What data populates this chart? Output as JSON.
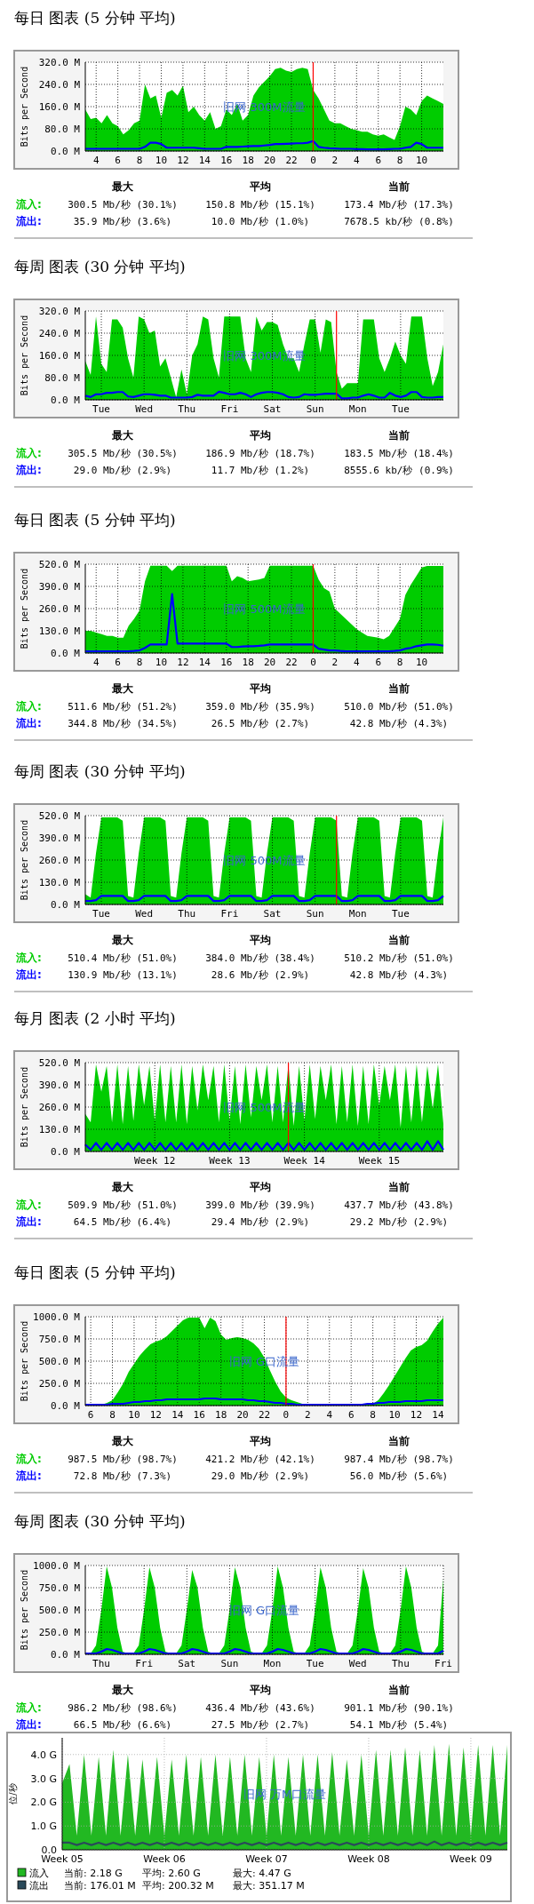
{
  "chart_data": [
    {
      "type": "area",
      "title": "每日 图表 (5 分钟 平均)",
      "ylabel": "Bits per Second",
      "ylim": [
        0,
        320
      ],
      "grid": true,
      "categories": [
        null,
        null,
        "4",
        null,
        null,
        null,
        "6",
        null,
        null,
        null,
        "8",
        null,
        null,
        null,
        "10",
        null,
        null,
        null,
        "12",
        null,
        null,
        null,
        "14",
        null,
        null,
        null,
        "16",
        null,
        null,
        null,
        "18",
        null,
        null,
        null,
        "20",
        null,
        null,
        null,
        "22",
        null,
        null,
        null,
        "0",
        null,
        null,
        null,
        "2",
        null,
        null,
        null,
        "4",
        null,
        null,
        null,
        "6",
        null,
        null,
        null,
        "8",
        null,
        null,
        null,
        "10",
        null,
        null,
        null,
        null
      ],
      "yticks": [
        {
          "value": 0,
          "label": "0.0 M"
        },
        {
          "value": 80,
          "label": "80.0 M"
        },
        {
          "value": 160,
          "label": "160.0 M"
        },
        {
          "value": 240,
          "label": "240.0 M"
        },
        {
          "value": 320,
          "label": "320.0 M"
        }
      ],
      "ref_lines": [
        {
          "axis": "x",
          "value": "0",
          "color": "#ff0000"
        }
      ],
      "series": [
        {
          "name": "流入:",
          "type": "area",
          "color": "#00cc00",
          "values": [
            150,
            115,
            120,
            100,
            130,
            100,
            90,
            60,
            75,
            100,
            110,
            240,
            190,
            200,
            120,
            210,
            220,
            200,
            235,
            140,
            160,
            130,
            110,
            140,
            80,
            90,
            150,
            130,
            170,
            110,
            130,
            200,
            230,
            250,
            270,
            295,
            300,
            290,
            285,
            295,
            300,
            295,
            220,
            190,
            150,
            110,
            100,
            100,
            90,
            80,
            75,
            70,
            70,
            60,
            55,
            60,
            50,
            40,
            90,
            160,
            150,
            130,
            180,
            200,
            190,
            180,
            170
          ]
        },
        {
          "name": "流出:",
          "type": "line",
          "color": "#0000ff",
          "values": [
            8,
            8,
            8,
            8,
            8,
            8,
            8,
            8,
            8,
            8,
            8,
            15,
            30,
            30,
            25,
            12,
            12,
            12,
            12,
            12,
            12,
            10,
            8,
            8,
            8,
            8,
            15,
            15,
            15,
            16,
            17,
            18,
            18,
            20,
            22,
            25,
            25,
            26,
            27,
            28,
            28,
            30,
            36,
            15,
            12,
            10,
            9,
            8,
            8,
            8,
            7,
            7,
            6,
            6,
            6,
            6,
            7,
            8,
            8,
            12,
            15,
            30,
            25,
            12,
            12,
            12,
            12
          ]
        }
      ],
      "annotations": [
        "旧网 300M流量",
        "最大",
        "平均",
        "当前",
        "300.5 Mb/秒 (30.1%)",
        "150.8 Mb/秒 (15.1%)",
        "173.4 Mb/秒 (17.3%)",
        "35.9 Mb/秒 (3.6%)",
        "10.0 Mb/秒 (1.0%)",
        "7678.5 kb/秒 (0.8%)"
      ]
    },
    {
      "type": "area",
      "title": "每周 图表 (30 分钟 平均)",
      "ylabel": "Bits per Second",
      "ylim": [
        0,
        320
      ],
      "grid": true,
      "categories": [
        null,
        null,
        null,
        "Tue",
        null,
        null,
        null,
        null,
        null,
        null,
        null,
        "Wed",
        null,
        null,
        null,
        null,
        null,
        null,
        null,
        "Thu",
        null,
        null,
        null,
        null,
        null,
        null,
        null,
        "Fri",
        null,
        null,
        null,
        null,
        null,
        null,
        null,
        "Sat",
        null,
        null,
        null,
        null,
        null,
        null,
        null,
        "Sun",
        null,
        null,
        null,
        null,
        null,
        null,
        null,
        "Mon",
        null,
        null,
        null,
        null,
        null,
        null,
        null,
        "Tue",
        null,
        null,
        null,
        null,
        null,
        null,
        null,
        null
      ],
      "yticks": [
        {
          "value": 0,
          "label": "0.0 M"
        },
        {
          "value": 80,
          "label": "80.0 M"
        },
        {
          "value": 160,
          "label": "160.0 M"
        },
        {
          "value": 240,
          "label": "240.0 M"
        },
        {
          "value": 320,
          "label": "320.0 M"
        }
      ],
      "series": [
        {
          "name": "流入:",
          "type": "area",
          "color": "#00cc00",
          "values": [
            140,
            90,
            300,
            130,
            100,
            290,
            290,
            260,
            150,
            80,
            300,
            290,
            240,
            250,
            120,
            150,
            80,
            10,
            110,
            20,
            160,
            200,
            300,
            290,
            150,
            80,
            300,
            300,
            300,
            300,
            150,
            100,
            300,
            250,
            280,
            280,
            270,
            200,
            150,
            150,
            100,
            200,
            290,
            290,
            170,
            290,
            280,
            100,
            40,
            60,
            60,
            60,
            290,
            290,
            290,
            150,
            100,
            150,
            210,
            160,
            130,
            300,
            300,
            300,
            150,
            50,
            100,
            200
          ]
        },
        {
          "name": "流出:",
          "type": "line",
          "color": "#0000ff",
          "values": [
            15,
            10,
            20,
            20,
            25,
            25,
            28,
            28,
            12,
            10,
            15,
            20,
            20,
            18,
            15,
            15,
            8,
            8,
            8,
            8,
            10,
            18,
            15,
            15,
            15,
            29,
            25,
            20,
            20,
            25,
            20,
            10,
            20,
            25,
            28,
            28,
            25,
            20,
            10,
            8,
            10,
            20,
            18,
            18,
            20,
            22,
            22,
            22,
            5,
            5,
            8,
            8,
            15,
            20,
            15,
            8,
            8,
            25,
            15,
            10,
            15,
            28,
            28,
            10,
            8,
            8,
            10,
            10
          ]
        }
      ],
      "annotations": [
        "旧网 300M流量",
        "最大",
        "平均",
        "当前",
        "305.5 Mb/秒 (30.5%)",
        "186.9 Mb/秒 (18.7%)",
        "183.5 Mb/秒 (18.4%)",
        "29.0 Mb/秒 (2.9%)",
        "11.7 Mb/秒 (1.2%)",
        "8555.6 kb/秒 (0.9%)"
      ]
    },
    {
      "type": "area",
      "title": "每日 图表 (5 分钟 平均)",
      "ylabel": "Bits per Second",
      "ylim": [
        0,
        520
      ],
      "grid": true,
      "categories": [
        null,
        null,
        "4",
        null,
        null,
        null,
        "6",
        null,
        null,
        null,
        "8",
        null,
        null,
        null,
        "10",
        null,
        null,
        null,
        "12",
        null,
        null,
        null,
        "14",
        null,
        null,
        null,
        "16",
        null,
        null,
        null,
        "18",
        null,
        null,
        null,
        "20",
        null,
        null,
        null,
        "22",
        null,
        null,
        null,
        "0",
        null,
        null,
        null,
        "2",
        null,
        null,
        null,
        "4",
        null,
        null,
        null,
        "6",
        null,
        null,
        null,
        "8",
        null,
        null,
        null,
        "10",
        null,
        null,
        null,
        null
      ],
      "yticks": [
        {
          "value": 0,
          "label": "0.0 M"
        },
        {
          "value": 130,
          "label": "130.0 M"
        },
        {
          "value": 260,
          "label": "260.0 M"
        },
        {
          "value": 390,
          "label": "390.0 M"
        },
        {
          "value": 520,
          "label": "520.0 M"
        }
      ],
      "ref_lines": [
        {
          "axis": "x",
          "value": "0",
          "color": "#ff0000"
        }
      ],
      "series": [
        {
          "name": "流入:",
          "type": "area",
          "color": "#00cc00",
          "values": [
            130,
            130,
            120,
            110,
            100,
            100,
            90,
            90,
            160,
            200,
            250,
            420,
            511,
            511,
            511,
            511,
            480,
            511,
            511,
            511,
            511,
            511,
            511,
            511,
            511,
            511,
            511,
            420,
            450,
            440,
            420,
            425,
            430,
            440,
            511,
            511,
            511,
            511,
            511,
            511,
            511,
            511,
            511,
            430,
            380,
            360,
            260,
            230,
            200,
            170,
            140,
            120,
            100,
            95,
            90,
            80,
            100,
            150,
            200,
            340,
            400,
            450,
            500,
            510,
            510,
            510,
            510
          ]
        },
        {
          "name": "流出:",
          "type": "line",
          "color": "#0000ff",
          "values": [
            10,
            10,
            10,
            10,
            10,
            10,
            10,
            10,
            10,
            12,
            15,
            30,
            50,
            50,
            50,
            50,
            345,
            55,
            55,
            55,
            55,
            55,
            55,
            55,
            55,
            55,
            55,
            35,
            35,
            38,
            40,
            40,
            42,
            45,
            50,
            50,
            50,
            50,
            50,
            50,
            50,
            50,
            50,
            25,
            20,
            15,
            15,
            12,
            10,
            10,
            10,
            10,
            10,
            10,
            10,
            10,
            10,
            12,
            15,
            25,
            30,
            40,
            45,
            50,
            50,
            48,
            43
          ]
        }
      ],
      "annotations": [
        "旧网 500M流量",
        "最大",
        "平均",
        "当前",
        "511.6 Mb/秒 (51.2%)",
        "359.0 Mb/秒 (35.9%)",
        "510.0 Mb/秒 (51.0%)",
        "344.8 Mb/秒 (34.5%)",
        "26.5 Mb/秒 (2.7%)",
        "42.8 Mb/秒 (4.3%)"
      ]
    },
    {
      "type": "area",
      "title": "每周 图表 (30 分钟 平均)",
      "ylabel": "Bits per Second",
      "ylim": [
        0,
        520
      ],
      "grid": true,
      "categories": [
        null,
        null,
        null,
        "Tue",
        null,
        null,
        null,
        null,
        null,
        null,
        null,
        "Wed",
        null,
        null,
        null,
        null,
        null,
        null,
        null,
        "Thu",
        null,
        null,
        null,
        null,
        null,
        null,
        null,
        "Fri",
        null,
        null,
        null,
        null,
        null,
        null,
        null,
        "Sat",
        null,
        null,
        null,
        null,
        null,
        null,
        null,
        "Sun",
        null,
        null,
        null,
        null,
        null,
        null,
        null,
        "Mon",
        null,
        null,
        null,
        null,
        null,
        null,
        null,
        "Tue",
        null,
        null,
        null,
        null,
        null,
        null,
        null,
        null
      ],
      "yticks": [
        {
          "value": 0,
          "label": "0.0 M"
        },
        {
          "value": 130,
          "label": "130.0 M"
        },
        {
          "value": 260,
          "label": "260.0 M"
        },
        {
          "value": 390,
          "label": "390.0 M"
        },
        {
          "value": 520,
          "label": "520.0 M"
        }
      ],
      "series": [
        {
          "name": "流入:",
          "type": "area",
          "color": "#00cc00",
          "values": [
            60,
            40,
            300,
            510,
            510,
            510,
            510,
            490,
            50,
            40,
            300,
            510,
            510,
            510,
            510,
            490,
            50,
            40,
            300,
            510,
            510,
            510,
            510,
            490,
            50,
            40,
            300,
            510,
            510,
            510,
            510,
            490,
            50,
            40,
            300,
            510,
            510,
            510,
            510,
            490,
            50,
            40,
            300,
            510,
            510,
            510,
            510,
            490,
            50,
            40,
            300,
            510,
            510,
            510,
            510,
            490,
            50,
            40,
            300,
            510,
            510,
            510,
            510,
            490,
            50,
            40,
            300,
            510
          ]
        },
        {
          "name": "流出:",
          "type": "line",
          "color": "#0000ff",
          "values": [
            20,
            20,
            25,
            50,
            50,
            50,
            50,
            50,
            20,
            20,
            25,
            50,
            50,
            50,
            50,
            50,
            20,
            20,
            25,
            50,
            50,
            50,
            50,
            50,
            20,
            20,
            25,
            50,
            50,
            50,
            50,
            50,
            20,
            20,
            25,
            50,
            50,
            50,
            50,
            50,
            20,
            20,
            25,
            50,
            50,
            50,
            50,
            50,
            20,
            20,
            25,
            50,
            50,
            50,
            50,
            50,
            20,
            20,
            25,
            50,
            50,
            50,
            50,
            50,
            20,
            20,
            25,
            50
          ]
        }
      ],
      "annotations": [
        "旧网 500M流量",
        "最大",
        "平均",
        "当前",
        "510.4 Mb/秒 (51.0%)",
        "384.0 Mb/秒 (38.4%)",
        "510.2 Mb/秒 (51.0%)",
        "130.9 Mb/秒 (13.1%)",
        "28.6 Mb/秒 (2.9%)",
        "42.8 Mb/秒 (4.3%)"
      ]
    },
    {
      "type": "area",
      "title": "每月 图表 (2 小时 平均)",
      "ylabel": "Bits per Second",
      "ylim": [
        0,
        520
      ],
      "grid": true,
      "categories": [
        null,
        null,
        null,
        null,
        null,
        null,
        null,
        null,
        null,
        null,
        null,
        null,
        null,
        "Week 12",
        null,
        null,
        null,
        null,
        null,
        null,
        null,
        null,
        null,
        null,
        null,
        null,
        null,
        "Week 13",
        null,
        null,
        null,
        null,
        null,
        null,
        null,
        null,
        null,
        null,
        null,
        null,
        null,
        "Week 14",
        null,
        null,
        null,
        null,
        null,
        null,
        null,
        null,
        null,
        null,
        null,
        null,
        null,
        "Week 15",
        null,
        null,
        null,
        null,
        null,
        null,
        null,
        null,
        null,
        null,
        null,
        null
      ],
      "yticks": [
        {
          "value": 0,
          "label": "0.0 M"
        },
        {
          "value": 130,
          "label": "130.0 M"
        },
        {
          "value": 260,
          "label": "260.0 M"
        },
        {
          "value": 390,
          "label": "390.0 M"
        },
        {
          "value": 520,
          "label": "520.0 M"
        }
      ],
      "series": [
        {
          "name": "流入:",
          "type": "area",
          "color": "#00cc00",
          "values": [
            220,
            170,
            510,
            350,
            500,
            170,
            510,
            160,
            500,
            180,
            510,
            270,
            500,
            180,
            510,
            170,
            500,
            170,
            510,
            160,
            500,
            240,
            510,
            300,
            500,
            170,
            510,
            180,
            500,
            160,
            510,
            200,
            500,
            300,
            510,
            170,
            500,
            170,
            510,
            150,
            500,
            180,
            510,
            190,
            500,
            300,
            510,
            160,
            500,
            170,
            510,
            150,
            500,
            160,
            510,
            270,
            500,
            300,
            510,
            140,
            500,
            170,
            510,
            170,
            500,
            250,
            510,
            160
          ]
        },
        {
          "name": "流出:",
          "type": "line",
          "color": "#0000ff",
          "values": [
            40,
            10,
            50,
            10,
            50,
            10,
            50,
            10,
            50,
            10,
            50,
            10,
            50,
            10,
            50,
            10,
            50,
            10,
            50,
            10,
            50,
            10,
            50,
            10,
            50,
            10,
            50,
            10,
            50,
            10,
            50,
            10,
            50,
            10,
            50,
            10,
            50,
            10,
            50,
            10,
            50,
            10,
            50,
            10,
            50,
            10,
            50,
            10,
            50,
            10,
            50,
            10,
            50,
            10,
            50,
            10,
            50,
            10,
            50,
            10,
            50,
            10,
            50,
            10,
            60,
            10,
            60,
            10
          ]
        }
      ],
      "annotations": [
        "旧网 500M流量",
        "最大",
        "平均",
        "当前",
        "509.9 Mb/秒 (51.0%)",
        "399.0 Mb/秒 (39.9%)",
        "437.7 Mb/秒 (43.8%)",
        "64.5 Mb/秒 (6.4%)",
        "29.4 Mb/秒 (2.9%)",
        "29.2 Mb/秒 (2.9%)"
      ]
    },
    {
      "type": "area",
      "title": "每日 图表 (5 分钟 平均)",
      "ylabel": "Bits per Second",
      "ylim": [
        0,
        1000
      ],
      "grid": true,
      "categories": [
        null,
        "6",
        null,
        null,
        null,
        "8",
        null,
        null,
        null,
        "10",
        null,
        null,
        null,
        "12",
        null,
        null,
        null,
        "14",
        null,
        null,
        null,
        "16",
        null,
        null,
        null,
        "18",
        null,
        null,
        null,
        "20",
        null,
        null,
        null,
        "22",
        null,
        null,
        null,
        "0",
        null,
        null,
        null,
        "2",
        null,
        null,
        null,
        "4",
        null,
        null,
        null,
        "6",
        null,
        null,
        null,
        "8",
        null,
        null,
        null,
        "10",
        null,
        null,
        null,
        "12",
        null,
        null,
        null,
        "14",
        null
      ],
      "yticks": [
        {
          "value": 0,
          "label": "0.0 M"
        },
        {
          "value": 250,
          "label": "250.0 M"
        },
        {
          "value": 500,
          "label": "500.0 M"
        },
        {
          "value": 750,
          "label": "750.0 M"
        },
        {
          "value": 1000,
          "label": "1000.0 M"
        }
      ],
      "ref_lines": [
        {
          "axis": "x",
          "value": "0",
          "color": "#ff0000"
        }
      ],
      "series": [
        {
          "name": "流入:",
          "type": "area",
          "color": "#00cc00",
          "values": [
            10,
            10,
            10,
            10,
            30,
            60,
            150,
            250,
            380,
            470,
            560,
            630,
            690,
            720,
            740,
            780,
            840,
            900,
            960,
            990,
            990,
            990,
            870,
            990,
            950,
            800,
            740,
            760,
            770,
            760,
            740,
            700,
            640,
            540,
            400,
            270,
            160,
            90,
            60,
            40,
            20,
            10,
            10,
            10,
            10,
            10,
            10,
            10,
            10,
            10,
            10,
            10,
            10,
            20,
            60,
            140,
            230,
            330,
            430,
            530,
            620,
            660,
            680,
            730,
            830,
            920,
            990
          ]
        },
        {
          "name": "流出:",
          "type": "line",
          "color": "#0000ff",
          "values": [
            10,
            10,
            10,
            10,
            10,
            20,
            20,
            20,
            30,
            40,
            40,
            50,
            50,
            60,
            60,
            70,
            70,
            70,
            70,
            70,
            70,
            70,
            80,
            80,
            80,
            70,
            70,
            70,
            70,
            70,
            60,
            60,
            50,
            50,
            40,
            30,
            30,
            20,
            20,
            10,
            10,
            10,
            10,
            10,
            10,
            10,
            10,
            10,
            10,
            10,
            10,
            10,
            20,
            20,
            30,
            30,
            40,
            40,
            40,
            50,
            50,
            50,
            50,
            60,
            60,
            60,
            60
          ]
        }
      ],
      "annotations": [
        "旧网 G口流量",
        "最大",
        "平均",
        "当前",
        "987.5 Mb/秒 (98.7%)",
        "421.2 Mb/秒 (42.1%)",
        "987.4 Mb/秒 (98.7%)",
        "72.8 Mb/秒 (7.3%)",
        "29.0 Mb/秒 (2.9%)",
        "56.0 Mb/秒 (5.6%)"
      ]
    },
    {
      "type": "area",
      "title": "每周 图表 (30 分钟 平均)",
      "ylabel": "Bits per Second",
      "ylim": [
        0,
        1000
      ],
      "grid": true,
      "categories": [
        null,
        null,
        null,
        "Thu",
        null,
        null,
        null,
        null,
        null,
        null,
        null,
        "Fri",
        null,
        null,
        null,
        null,
        null,
        null,
        null,
        "Sat",
        null,
        null,
        null,
        null,
        null,
        null,
        null,
        "Sun",
        null,
        null,
        null,
        null,
        null,
        null,
        null,
        "Mon",
        null,
        null,
        null,
        null,
        null,
        null,
        null,
        "Tue",
        null,
        null,
        null,
        null,
        null,
        null,
        null,
        "Wed",
        null,
        null,
        null,
        null,
        null,
        null,
        null,
        "Thu",
        null,
        null,
        null,
        null,
        null,
        null,
        null,
        "Fri"
      ],
      "yticks": [
        {
          "value": 0,
          "label": "0.0 M"
        },
        {
          "value": 250,
          "label": "250.0 M"
        },
        {
          "value": 500,
          "label": "500.0 M"
        },
        {
          "value": 750,
          "label": "750.0 M"
        },
        {
          "value": 1000,
          "label": "1000.0 M"
        }
      ],
      "series": [
        {
          "name": "流入:",
          "type": "area",
          "color": "#00cc00",
          "values": [
            10,
            10,
            100,
            500,
            990,
            750,
            300,
            30,
            10,
            10,
            100,
            500,
            980,
            750,
            300,
            30,
            10,
            10,
            100,
            500,
            950,
            750,
            300,
            30,
            10,
            10,
            100,
            500,
            980,
            750,
            300,
            30,
            10,
            10,
            100,
            500,
            990,
            750,
            300,
            30,
            10,
            10,
            100,
            500,
            980,
            750,
            300,
            30,
            10,
            10,
            100,
            500,
            970,
            750,
            300,
            30,
            10,
            10,
            100,
            500,
            990,
            750,
            300,
            30,
            10,
            10,
            100,
            850
          ]
        },
        {
          "name": "流出:",
          "type": "line",
          "color": "#0000ff",
          "values": [
            10,
            10,
            10,
            30,
            60,
            50,
            30,
            10,
            10,
            10,
            10,
            30,
            60,
            50,
            30,
            10,
            10,
            10,
            10,
            30,
            60,
            50,
            30,
            10,
            10,
            10,
            10,
            30,
            60,
            50,
            30,
            10,
            10,
            10,
            10,
            30,
            60,
            50,
            30,
            10,
            10,
            10,
            10,
            30,
            60,
            50,
            30,
            10,
            10,
            10,
            10,
            30,
            60,
            50,
            30,
            10,
            10,
            10,
            10,
            30,
            60,
            50,
            30,
            10,
            10,
            10,
            10,
            40
          ]
        }
      ],
      "annotations": [
        "旧网 G口流量",
        "最大",
        "平均",
        "当前",
        "986.2 Mb/秒 (98.6%)",
        "436.4 Mb/秒 (43.6%)",
        "901.1 Mb/秒 (90.1%)",
        "66.5 Mb/秒 (6.6%)",
        "27.5 Mb/秒 (2.7%)",
        "54.1 Mb/秒 (5.4%)"
      ]
    },
    {
      "type": "area",
      "ylabel": "位/秒",
      "ylim": [
        0,
        4.7
      ],
      "grid": true,
      "legend": "bottom",
      "categories": [
        "Week 05",
        null,
        null,
        null,
        null,
        null,
        null,
        null,
        null,
        null,
        null,
        null,
        null,
        null,
        "Week 06",
        null,
        null,
        null,
        null,
        null,
        null,
        null,
        null,
        null,
        null,
        null,
        null,
        null,
        "Week 07",
        null,
        null,
        null,
        null,
        null,
        null,
        null,
        null,
        null,
        null,
        null,
        null,
        null,
        "Week 08",
        null,
        null,
        null,
        null,
        null,
        null,
        null,
        null,
        null,
        null,
        null,
        null,
        null,
        "Week 09",
        null,
        null,
        null,
        null,
        null
      ],
      "yticks": [
        {
          "value": 0,
          "label": "0.0"
        },
        {
          "value": 1,
          "label": "1.0 G"
        },
        {
          "value": 2,
          "label": "2.0 G"
        },
        {
          "value": 3,
          "label": "3.0 G"
        },
        {
          "value": 4,
          "label": "4.0 G"
        }
      ],
      "series": [
        {
          "name": "流入",
          "type": "area",
          "color": "#22b822",
          "values": [
            2.8,
            3.6,
            0.6,
            4.0,
            0.6,
            3.9,
            0.6,
            4.2,
            0.6,
            4.0,
            0.6,
            3.8,
            0.6,
            3.9,
            0.6,
            3.8,
            0.6,
            4.0,
            0.6,
            3.9,
            0.6,
            4.0,
            0.6,
            3.9,
            0.6,
            4.0,
            0.6,
            3.9,
            0.6,
            4.0,
            0.6,
            3.9,
            0.6,
            4.0,
            0.6,
            4.0,
            0.6,
            4.1,
            0.6,
            3.8,
            0.6,
            4.0,
            0.6,
            4.2,
            0.6,
            4.2,
            0.6,
            4.3,
            0.6,
            4.2,
            0.6,
            4.4,
            0.6,
            4.45,
            0.6,
            4.3,
            0.6,
            4.4,
            0.6,
            4.4,
            0.6,
            4.4
          ]
        },
        {
          "name": "流出",
          "type": "line",
          "color": "#2a4a5a",
          "values": [
            0.3,
            0.3,
            0.2,
            0.3,
            0.2,
            0.3,
            0.2,
            0.3,
            0.2,
            0.3,
            0.2,
            0.3,
            0.2,
            0.3,
            0.2,
            0.3,
            0.2,
            0.3,
            0.2,
            0.3,
            0.2,
            0.3,
            0.2,
            0.3,
            0.2,
            0.3,
            0.2,
            0.3,
            0.2,
            0.3,
            0.2,
            0.3,
            0.2,
            0.3,
            0.2,
            0.3,
            0.2,
            0.3,
            0.2,
            0.3,
            0.2,
            0.3,
            0.2,
            0.3,
            0.2,
            0.3,
            0.2,
            0.3,
            0.2,
            0.3,
            0.2,
            0.35,
            0.2,
            0.3,
            0.2,
            0.3,
            0.2,
            0.3,
            0.2,
            0.3,
            0.2,
            0.3
          ]
        }
      ],
      "annotations": [
        "旧网 万M口流量",
        "当前:  2.18 G",
        "平均:  2.60 G",
        "最大:  4.47 G",
        "当前: 176.01 M",
        "平均: 200.32 M",
        "最大: 351.17 M"
      ]
    }
  ]
}
